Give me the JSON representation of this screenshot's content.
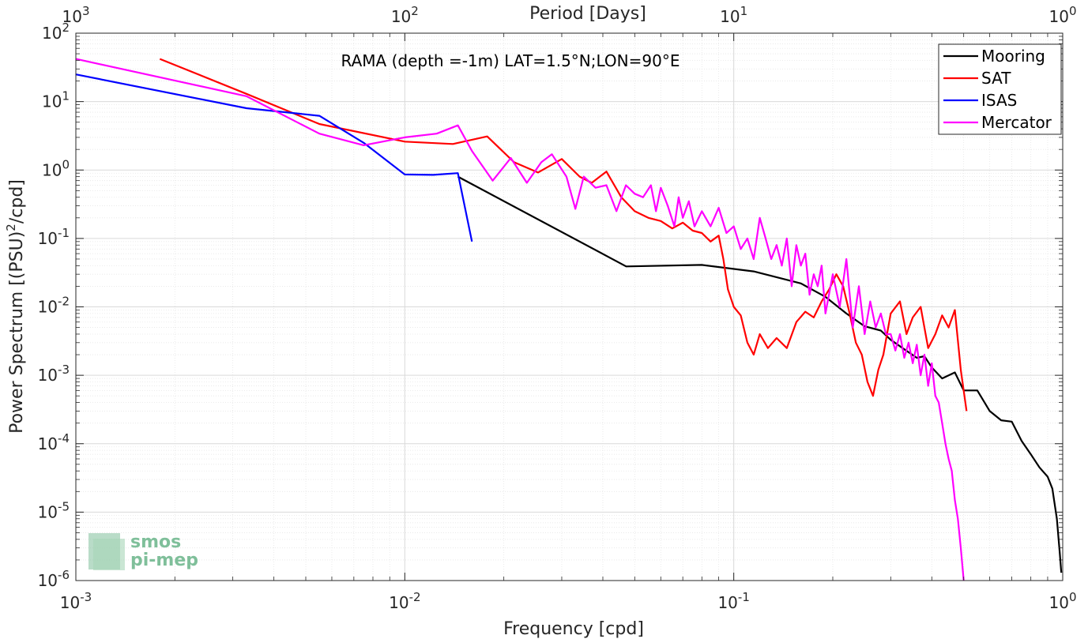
{
  "chart_data": {
    "type": "line",
    "title": "RAMA (depth =-1m) LAT=1.5°N;LON=90°E",
    "xlabel": "Frequency [cpd]",
    "ylabel": "Power Spectrum [(PSU)²/cpd]",
    "top_xlabel": "Period [Days]",
    "x_scale": "log",
    "y_scale": "log",
    "xlim": [
      0.001,
      1
    ],
    "ylim": [
      1e-06,
      100
    ],
    "grid": true,
    "minor_grid": true,
    "legend_position": "top-right",
    "x_ticks": [
      {
        "value": 0.001,
        "base": "10",
        "exp": "-3"
      },
      {
        "value": 0.01,
        "base": "10",
        "exp": "-2"
      },
      {
        "value": 0.1,
        "base": "10",
        "exp": "-1"
      },
      {
        "value": 1,
        "base": "10",
        "exp": "0"
      }
    ],
    "top_ticks": [
      {
        "value": 0.001,
        "base": "10",
        "exp": "3"
      },
      {
        "value": 0.01,
        "base": "10",
        "exp": "2"
      },
      {
        "value": 0.1,
        "base": "10",
        "exp": "1"
      },
      {
        "value": 1,
        "base": "10",
        "exp": "0"
      }
    ],
    "y_ticks": [
      {
        "value": 100,
        "base": "10",
        "exp": "2"
      },
      {
        "value": 10,
        "base": "10",
        "exp": "1"
      },
      {
        "value": 1,
        "base": "10",
        "exp": "0"
      },
      {
        "value": 0.1,
        "base": "10",
        "exp": "-1"
      },
      {
        "value": 0.01,
        "base": "10",
        "exp": "-2"
      },
      {
        "value": 0.001,
        "base": "10",
        "exp": "-3"
      },
      {
        "value": 0.0001,
        "base": "10",
        "exp": "-4"
      },
      {
        "value": 1e-05,
        "base": "10",
        "exp": "-5"
      },
      {
        "value": 1e-06,
        "base": "10",
        "exp": "-6"
      }
    ],
    "series": [
      {
        "name": "Mooring",
        "color": "#000000",
        "points": [
          [
            0.0145,
            0.8
          ],
          [
            0.0471,
            0.039
          ],
          [
            0.08,
            0.041
          ],
          [
            0.115,
            0.033
          ],
          [
            0.16,
            0.022
          ],
          [
            0.19,
            0.014
          ],
          [
            0.22,
            0.008
          ],
          [
            0.25,
            0.0052
          ],
          [
            0.28,
            0.0045
          ],
          [
            0.3,
            0.0033
          ],
          [
            0.33,
            0.0024
          ],
          [
            0.36,
            0.0018
          ],
          [
            0.38,
            0.0019
          ],
          [
            0.4,
            0.0013
          ],
          [
            0.43,
            0.0009
          ],
          [
            0.47,
            0.0011
          ],
          [
            0.5,
            0.0006
          ],
          [
            0.55,
            0.0006
          ],
          [
            0.6,
            0.0003
          ],
          [
            0.65,
            0.00022
          ],
          [
            0.7,
            0.00021
          ],
          [
            0.75,
            0.00011
          ],
          [
            0.8,
            7e-05
          ],
          [
            0.85,
            4.5e-05
          ],
          [
            0.9,
            3.3e-05
          ],
          [
            0.93,
            2.2e-05
          ],
          [
            0.96,
            8e-06
          ],
          [
            0.98,
            2.5e-06
          ],
          [
            0.99,
            1.3e-06
          ]
        ]
      },
      {
        "name": "SAT",
        "color": "#ff0000",
        "points": [
          [
            0.0018,
            42
          ],
          [
            0.0033,
            13
          ],
          [
            0.0055,
            4.7
          ],
          [
            0.01,
            2.6
          ],
          [
            0.014,
            2.4
          ],
          [
            0.0178,
            3.1
          ],
          [
            0.0215,
            1.3
          ],
          [
            0.0254,
            0.92
          ],
          [
            0.03,
            1.45
          ],
          [
            0.034,
            0.8
          ],
          [
            0.037,
            0.65
          ],
          [
            0.041,
            0.95
          ],
          [
            0.0455,
            0.4
          ],
          [
            0.05,
            0.25
          ],
          [
            0.055,
            0.2
          ],
          [
            0.06,
            0.18
          ],
          [
            0.065,
            0.14
          ],
          [
            0.07,
            0.17
          ],
          [
            0.075,
            0.13
          ],
          [
            0.08,
            0.12
          ],
          [
            0.085,
            0.09
          ],
          [
            0.09,
            0.11
          ],
          [
            0.093,
            0.05
          ],
          [
            0.096,
            0.018
          ],
          [
            0.1,
            0.01
          ],
          [
            0.105,
            0.0075
          ],
          [
            0.11,
            0.003
          ],
          [
            0.115,
            0.002
          ],
          [
            0.12,
            0.004
          ],
          [
            0.127,
            0.0025
          ],
          [
            0.135,
            0.0035
          ],
          [
            0.145,
            0.0025
          ],
          [
            0.155,
            0.006
          ],
          [
            0.165,
            0.0085
          ],
          [
            0.175,
            0.007
          ],
          [
            0.185,
            0.012
          ],
          [
            0.195,
            0.018
          ],
          [
            0.205,
            0.03
          ],
          [
            0.215,
            0.02
          ],
          [
            0.225,
            0.008
          ],
          [
            0.235,
            0.003
          ],
          [
            0.245,
            0.002
          ],
          [
            0.255,
            0.0008
          ],
          [
            0.265,
            0.0005
          ],
          [
            0.275,
            0.0012
          ],
          [
            0.285,
            0.002
          ],
          [
            0.3,
            0.008
          ],
          [
            0.32,
            0.012
          ],
          [
            0.335,
            0.004
          ],
          [
            0.35,
            0.007
          ],
          [
            0.37,
            0.01
          ],
          [
            0.39,
            0.0025
          ],
          [
            0.41,
            0.004
          ],
          [
            0.43,
            0.0075
          ],
          [
            0.45,
            0.005
          ],
          [
            0.47,
            0.009
          ],
          [
            0.49,
            0.0012
          ],
          [
            0.51,
            0.0003
          ]
        ]
      },
      {
        "name": "ISAS",
        "color": "#0000ff",
        "points": [
          [
            0.001,
            25
          ],
          [
            0.0033,
            8.0
          ],
          [
            0.0055,
            6.2
          ],
          [
            0.0075,
            2.5
          ],
          [
            0.01,
            0.86
          ],
          [
            0.0122,
            0.85
          ],
          [
            0.0145,
            0.9
          ],
          [
            0.016,
            0.09
          ]
        ]
      },
      {
        "name": "Mercator",
        "color": "#ff00ff",
        "points": [
          [
            0.001,
            42
          ],
          [
            0.0033,
            12
          ],
          [
            0.0055,
            3.4
          ],
          [
            0.0075,
            2.3
          ],
          [
            0.01,
            3.0
          ],
          [
            0.0125,
            3.4
          ],
          [
            0.0145,
            4.5
          ],
          [
            0.016,
            1.9
          ],
          [
            0.0185,
            0.7
          ],
          [
            0.021,
            1.5
          ],
          [
            0.0235,
            0.65
          ],
          [
            0.026,
            1.3
          ],
          [
            0.028,
            1.7
          ],
          [
            0.031,
            0.8
          ],
          [
            0.033,
            0.27
          ],
          [
            0.035,
            0.8
          ],
          [
            0.038,
            0.55
          ],
          [
            0.041,
            0.6
          ],
          [
            0.044,
            0.25
          ],
          [
            0.047,
            0.6
          ],
          [
            0.05,
            0.45
          ],
          [
            0.053,
            0.4
          ],
          [
            0.056,
            0.6
          ],
          [
            0.058,
            0.25
          ],
          [
            0.06,
            0.55
          ],
          [
            0.063,
            0.3
          ],
          [
            0.066,
            0.15
          ],
          [
            0.068,
            0.4
          ],
          [
            0.07,
            0.2
          ],
          [
            0.073,
            0.35
          ],
          [
            0.076,
            0.15
          ],
          [
            0.08,
            0.25
          ],
          [
            0.085,
            0.15
          ],
          [
            0.09,
            0.28
          ],
          [
            0.095,
            0.12
          ],
          [
            0.1,
            0.15
          ],
          [
            0.105,
            0.07
          ],
          [
            0.11,
            0.1
          ],
          [
            0.115,
            0.05
          ],
          [
            0.12,
            0.2
          ],
          [
            0.125,
            0.1
          ],
          [
            0.13,
            0.05
          ],
          [
            0.135,
            0.08
          ],
          [
            0.14,
            0.04
          ],
          [
            0.145,
            0.1
          ],
          [
            0.15,
            0.02
          ],
          [
            0.155,
            0.08
          ],
          [
            0.16,
            0.04
          ],
          [
            0.165,
            0.06
          ],
          [
            0.17,
            0.015
          ],
          [
            0.175,
            0.03
          ],
          [
            0.18,
            0.02
          ],
          [
            0.185,
            0.04
          ],
          [
            0.19,
            0.008
          ],
          [
            0.2,
            0.03
          ],
          [
            0.21,
            0.01
          ],
          [
            0.22,
            0.05
          ],
          [
            0.23,
            0.005
          ],
          [
            0.24,
            0.02
          ],
          [
            0.25,
            0.004
          ],
          [
            0.26,
            0.012
          ],
          [
            0.27,
            0.005
          ],
          [
            0.28,
            0.008
          ],
          [
            0.29,
            0.004
          ],
          [
            0.3,
            0.004
          ],
          [
            0.31,
            0.0023
          ],
          [
            0.32,
            0.004
          ],
          [
            0.33,
            0.0018
          ],
          [
            0.34,
            0.003
          ],
          [
            0.35,
            0.0015
          ],
          [
            0.36,
            0.0028
          ],
          [
            0.37,
            0.001
          ],
          [
            0.38,
            0.002
          ],
          [
            0.39,
            0.0007
          ],
          [
            0.4,
            0.0015
          ],
          [
            0.41,
            0.0005
          ],
          [
            0.42,
            0.0004
          ],
          [
            0.43,
            0.0002
          ],
          [
            0.44,
            0.0001
          ],
          [
            0.45,
            6e-05
          ],
          [
            0.46,
            4e-05
          ],
          [
            0.47,
            1.5e-05
          ],
          [
            0.48,
            8e-06
          ],
          [
            0.49,
            3e-06
          ],
          [
            0.5,
            1e-06
          ]
        ]
      }
    ]
  },
  "watermark": {
    "line1": "smos",
    "line2": "pi-mep",
    "color": "#7fbf9a"
  }
}
